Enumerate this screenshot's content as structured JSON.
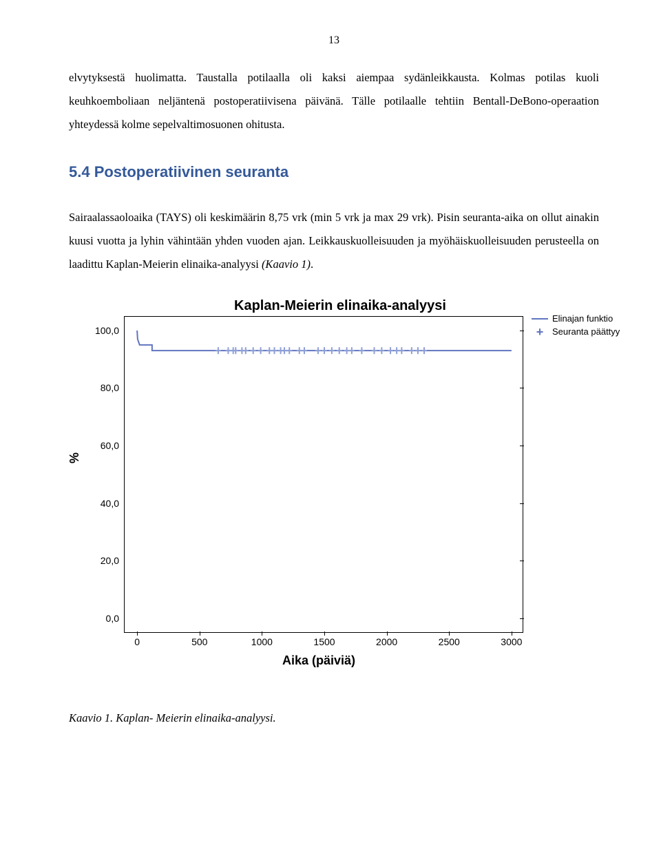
{
  "page_number": "13",
  "paragraph1": "elvytyksestä huolimatta. Taustalla potilaalla oli kaksi aiempaa sydänleikkausta. Kolmas potilas kuoli keuhkoemboliaan neljäntenä postoperatiivisena päivänä. Tälle potilaalle tehtiin Bentall-DeBono-operaation yhteydessä kolme sepelvaltimosuonen ohitusta.",
  "section_heading": "5.4 Postoperatiivinen seuranta",
  "paragraph2_a": "Sairaalassaoloaika (TAYS) oli keskimäärin 8,75 vrk (min 5 vrk ja max 29 vrk). Pisin seuranta-aika on ollut ainakin kuusi vuotta ja lyhin vähintään yhden vuoden ajan. Leikkauskuolleisuuden ja myöhäiskuolleisuuden perusteella on laadittu Kaplan-Meierin elinaika-analyysi ",
  "paragraph2_italic": "(Kaavio 1)",
  "paragraph2_b": ".",
  "caption": "Kaavio 1. Kaplan- Meierin elinaika-analyysi.",
  "chart": {
    "type": "survival-step",
    "title": "Kaplan-Meierin elinaika-analyysi",
    "y_label": "%",
    "x_label": "Aika (päiviä)",
    "x_ticks": [
      0,
      500,
      1000,
      1500,
      2000,
      2500,
      3000
    ],
    "y_ticks": [
      "0,0",
      "20,0",
      "40,0",
      "60,0",
      "80,0",
      "100,0"
    ],
    "y_tick_values": [
      0,
      20,
      40,
      60,
      80,
      100
    ],
    "x_min": -100,
    "x_max": 3100,
    "y_min": -5,
    "y_max": 105,
    "line_color": "#6074c1",
    "line_width": 2,
    "background_color": "#ffffff",
    "border_color": "#000000",
    "tick_fontsize": 14,
    "label_fontsize": 18,
    "title_fontsize": 20,
    "legend": [
      {
        "marker": "line",
        "label": "Elinajan funktio"
      },
      {
        "marker": "plus",
        "label": "Seuranta päättyy"
      }
    ],
    "survival_points": [
      {
        "x": 0,
        "y": 100
      },
      {
        "x": 4,
        "y": 97
      },
      {
        "x": 20,
        "y": 95
      },
      {
        "x": 120,
        "y": 95
      },
      {
        "x": 120,
        "y": 93
      },
      {
        "x": 3000,
        "y": 93
      }
    ],
    "censor_marks_x": [
      650,
      730,
      770,
      790,
      840,
      870,
      930,
      990,
      1060,
      1100,
      1150,
      1180,
      1220,
      1300,
      1340,
      1450,
      1500,
      1560,
      1620,
      1680,
      1720,
      1800,
      1900,
      1960,
      2030,
      2080,
      2120,
      2200,
      2250,
      2300
    ],
    "censor_mark_y": 93,
    "censor_color": "#8fa0d6"
  }
}
